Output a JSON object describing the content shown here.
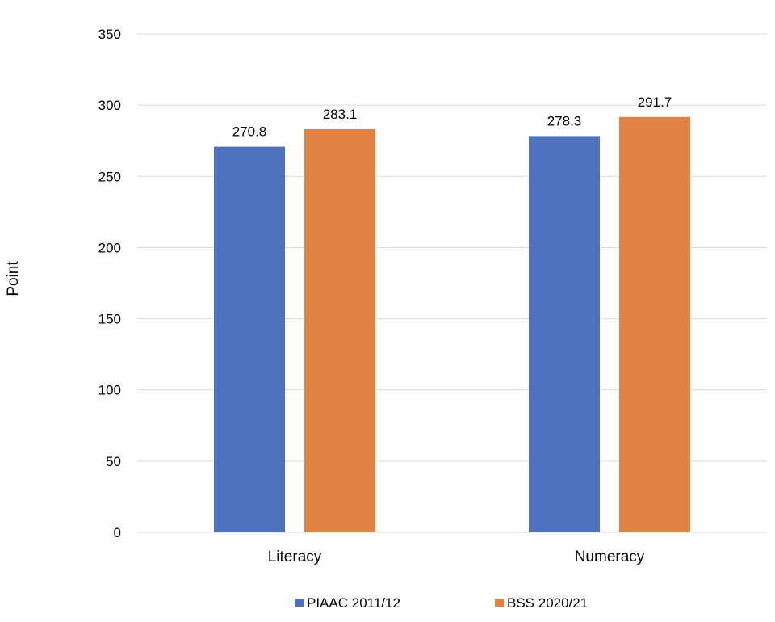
{
  "chart_data": {
    "type": "bar",
    "categories": [
      "Literacy",
      "Numeracy"
    ],
    "series": [
      {
        "name": "PIAAC 2011/12",
        "values": [
          270.8,
          278.3
        ],
        "color": "#4f72be"
      },
      {
        "name": "BSS 2020/21",
        "values": [
          283.1,
          291.7
        ],
        "color": "#e08244"
      }
    ],
    "data_labels": [
      [
        "270.8",
        "278.3"
      ],
      [
        "283.1",
        "291.7"
      ]
    ],
    "ylabel": "Point",
    "ylim": [
      0,
      350
    ],
    "yticks": [
      0,
      50,
      100,
      150,
      200,
      250,
      300,
      350
    ],
    "grid": true,
    "legend_position": "bottom"
  }
}
